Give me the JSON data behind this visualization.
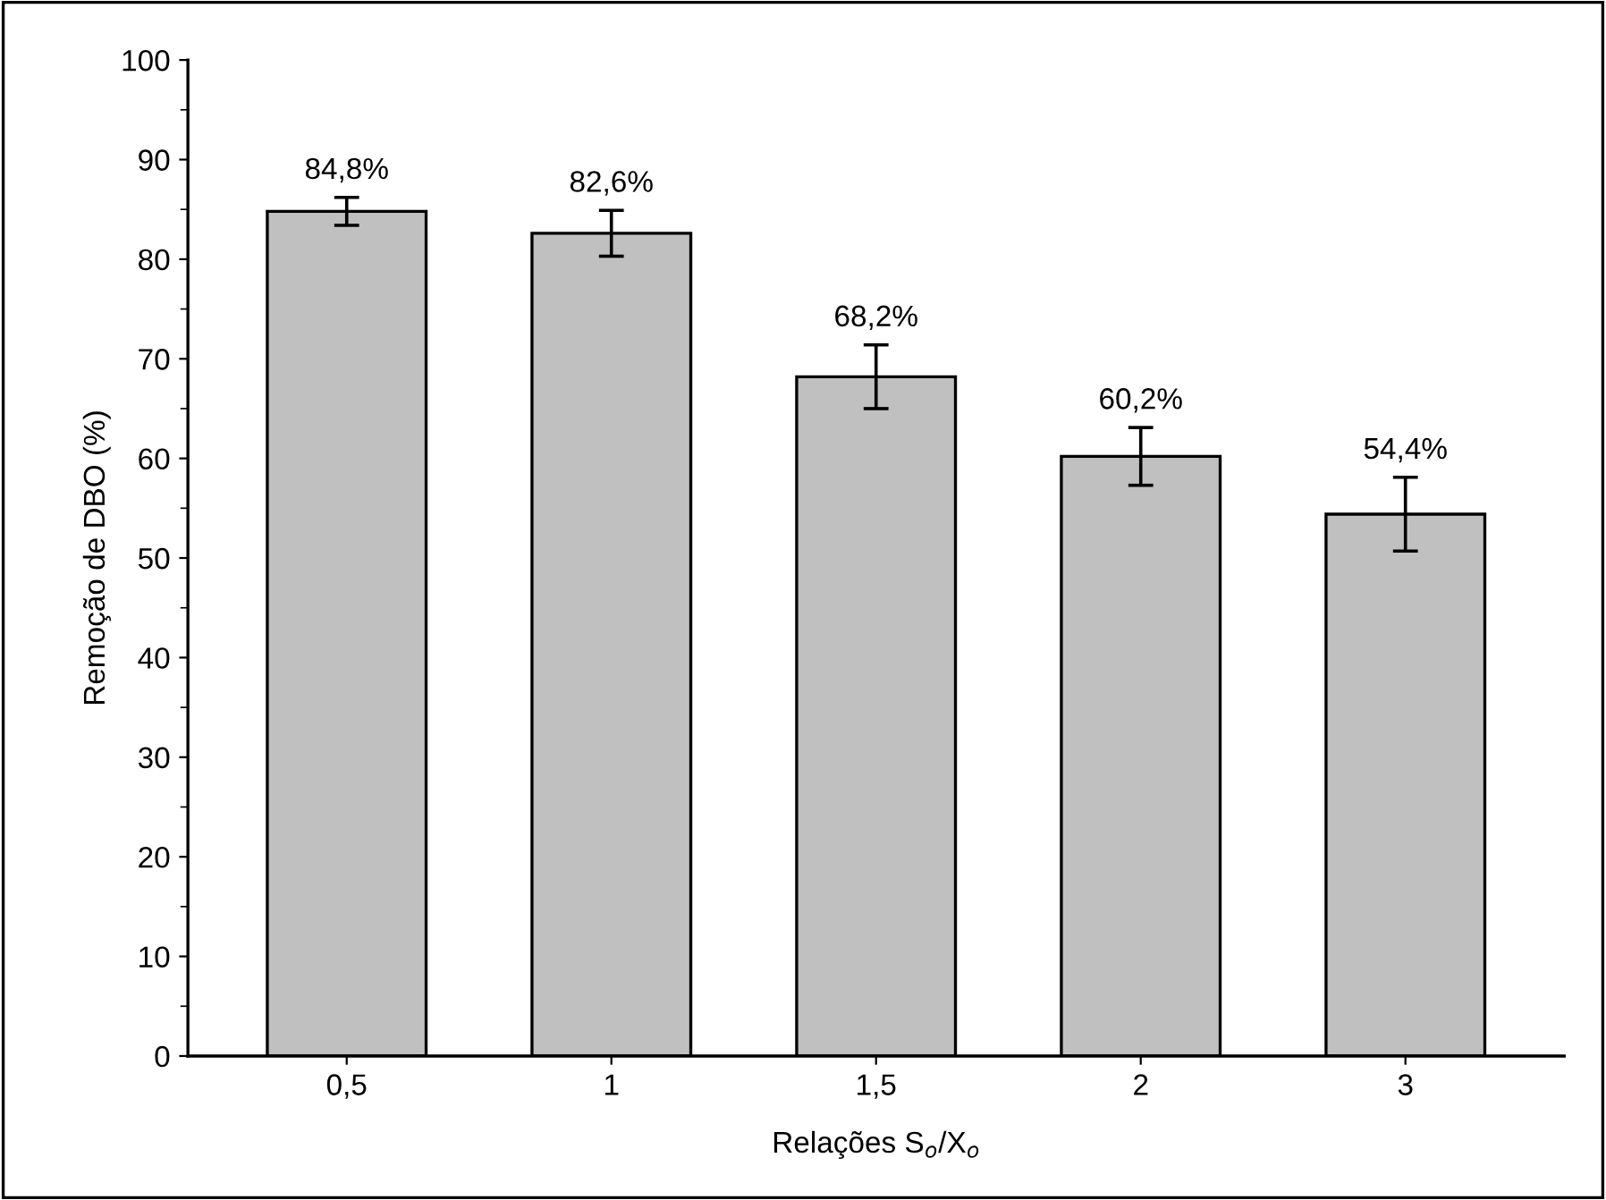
{
  "chart_data": {
    "type": "bar",
    "xlabel": "Relações S$_{o}$/X$_{o}$",
    "ylabel": "Remoção de DBO (%)",
    "categories": [
      "0,5",
      "1",
      "1,5",
      "2",
      "3"
    ],
    "values": [
      84.8,
      82.6,
      68.2,
      60.2,
      54.4
    ],
    "value_labels": [
      "84,8%",
      "82,6%",
      "68,2%",
      "60,2%",
      "54,4%"
    ],
    "errors": [
      1.4,
      2.3,
      3.2,
      2.9,
      3.7
    ],
    "color": "#c0c0c0",
    "ylim": [
      0,
      100
    ],
    "yticks": [
      0,
      10,
      20,
      30,
      40,
      50,
      60,
      70,
      80,
      90,
      100
    ],
    "grid": false,
    "legend": false
  }
}
